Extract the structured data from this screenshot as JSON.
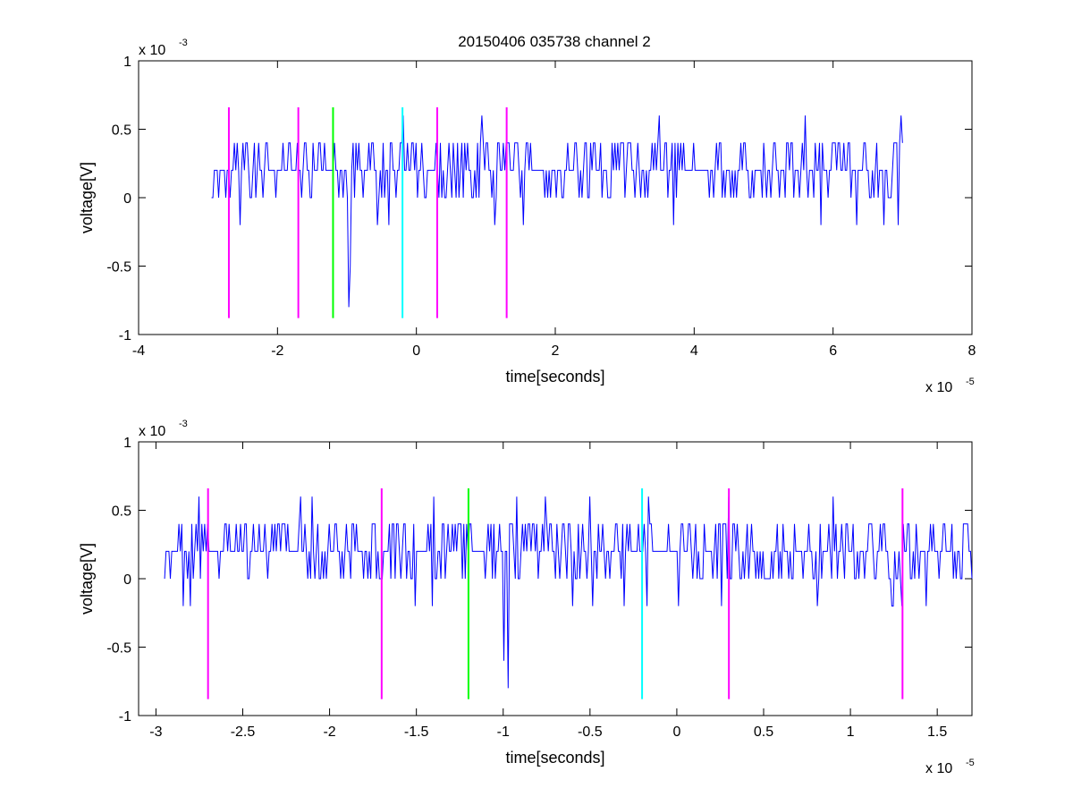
{
  "figure": {
    "title": "20150406 035738 channel 2",
    "background": "#ffffff"
  },
  "chart_data": [
    {
      "type": "line",
      "xlabel": "time[seconds]",
      "ylabel": "voltage[V]",
      "x_exponent_label": "x 10",
      "x_exponent": "-5",
      "y_exponent_label": "x 10",
      "y_exponent": "-3",
      "xlim": [
        -4e-05,
        8e-05
      ],
      "ylim": [
        -0.001,
        0.001
      ],
      "x_ticks": [
        -4e-05,
        -2e-05,
        0,
        2e-05,
        4e-05,
        6e-05,
        8e-05
      ],
      "x_tick_labels": [
        "-4",
        "-2",
        "0",
        "2",
        "4",
        "6",
        "8"
      ],
      "y_ticks": [
        -0.001,
        -0.0005,
        0,
        0.0005,
        0.001
      ],
      "y_tick_labels": [
        "-1",
        "-0.5",
        "0",
        "0.5",
        "1"
      ],
      "grid": false,
      "series": [
        {
          "color": "#0000ff",
          "style": "noisy-signal",
          "x_start": -2.95e-05,
          "x_end": 7e-05,
          "baseline": 0.0002,
          "quant_step": 0.0002,
          "features": [
            {
              "x": -9.7e-06,
              "y": -0.0008
            },
            {
              "x": -9.6e-06,
              "y": -0.0005
            },
            {
              "x": 9.5e-06,
              "y": 0.0006
            },
            {
              "x": 3.5e-05,
              "y": 0.0006
            },
            {
              "x": 5.6e-05,
              "y": 0.0006
            }
          ]
        }
      ],
      "markers": [
        {
          "x": -2.7e-05,
          "color": "#ff00ff",
          "y_range": [
            -0.00088,
            0.00066
          ]
        },
        {
          "x": -1.7e-05,
          "color": "#ff00ff",
          "y_range": [
            -0.00088,
            0.00066
          ]
        },
        {
          "x": -1.2e-05,
          "color": "#00ff00",
          "y_range": [
            -0.00088,
            0.00066
          ]
        },
        {
          "x": -2e-06,
          "color": "#00ffff",
          "y_range": [
            -0.00088,
            0.00066
          ]
        },
        {
          "x": 3e-06,
          "color": "#ff00ff",
          "y_range": [
            -0.00088,
            0.00066
          ]
        },
        {
          "x": 1.3e-05,
          "color": "#ff00ff",
          "y_range": [
            -0.00088,
            0.00066
          ]
        }
      ]
    },
    {
      "type": "line",
      "xlabel": "time[seconds]",
      "ylabel": "voltage[V]",
      "x_exponent_label": "x 10",
      "x_exponent": "-5",
      "y_exponent_label": "x 10",
      "y_exponent": "-3",
      "xlim": [
        -3.1e-05,
        1.7e-05
      ],
      "ylim": [
        -0.001,
        0.001
      ],
      "x_ticks": [
        -3e-05,
        -2.5e-05,
        -2e-05,
        -1.5e-05,
        -1e-05,
        -5e-06,
        0,
        5e-06,
        1e-05,
        1.5e-05
      ],
      "x_tick_labels": [
        "-3",
        "-2.5",
        "-2",
        "-1.5",
        "-1",
        "-0.5",
        "0",
        "0.5",
        "1",
        "1.5"
      ],
      "y_ticks": [
        -0.001,
        -0.0005,
        0,
        0.0005,
        0.001
      ],
      "y_tick_labels": [
        "-1",
        "-0.5",
        "0",
        "0.5",
        "1"
      ],
      "grid": false,
      "series": [
        {
          "color": "#0000ff",
          "style": "noisy-signal",
          "x_start": -2.95e-05,
          "x_end": 1.7e-05,
          "baseline": 0.0002,
          "quant_step": 0.0002,
          "features": [
            {
              "x": -2.8e-05,
              "y": -0.0002
            },
            {
              "x": -2.17e-05,
              "y": 0.0006
            },
            {
              "x": -2.1e-05,
              "y": 0.0006
            },
            {
              "x": -1.51e-05,
              "y": -0.0002
            },
            {
              "x": -1e-05,
              "y": -0.0006
            },
            {
              "x": -9.7e-06,
              "y": -0.0008
            },
            {
              "x": -9.2e-06,
              "y": 0.0006
            },
            {
              "x": -7.6e-06,
              "y": 0.0006
            },
            {
              "x": -5e-06,
              "y": 0.0006
            },
            {
              "x": 3e-06,
              "y": 0.0006
            },
            {
              "x": 9e-06,
              "y": 0.0006
            },
            {
              "x": 1.3e-05,
              "y": -0.0002
            }
          ]
        }
      ],
      "markers": [
        {
          "x": -2.7e-05,
          "color": "#ff00ff",
          "y_range": [
            -0.00088,
            0.00066
          ]
        },
        {
          "x": -1.7e-05,
          "color": "#ff00ff",
          "y_range": [
            -0.00088,
            0.00066
          ]
        },
        {
          "x": -1.2e-05,
          "color": "#00ff00",
          "y_range": [
            -0.00088,
            0.00066
          ]
        },
        {
          "x": -2e-06,
          "color": "#00ffff",
          "y_range": [
            -0.00088,
            0.00066
          ]
        },
        {
          "x": 3e-06,
          "color": "#ff00ff",
          "y_range": [
            -0.00088,
            0.00066
          ]
        },
        {
          "x": 1.3e-05,
          "color": "#ff00ff",
          "y_range": [
            -0.00088,
            0.00066
          ]
        }
      ]
    }
  ]
}
